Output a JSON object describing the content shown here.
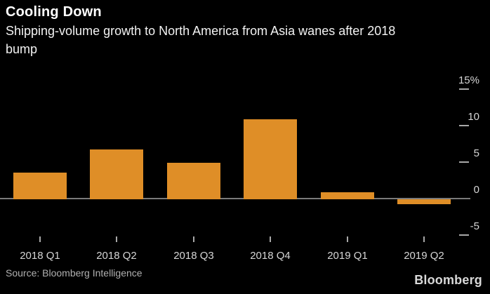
{
  "header": {
    "title": "Cooling Down",
    "subtitle": "Shipping-volume growth to North America from Asia wanes after 2018\nbump"
  },
  "chart_data": {
    "type": "bar",
    "title": "Cooling Down",
    "subtitle": "Shipping-volume growth to North America from Asia wanes after 2018 bump",
    "categories": [
      "2018 Q1",
      "2018 Q2",
      "2018 Q3",
      "2018 Q4",
      "2019 Q1",
      "2019 Q2"
    ],
    "values": [
      3.7,
      6.8,
      5.0,
      11.0,
      1.0,
      -0.7
    ],
    "unit": "%",
    "xlabel": "",
    "ylabel": "",
    "ylim": [
      -5,
      15
    ],
    "yticks": [
      15,
      10,
      5,
      0,
      -5
    ],
    "ytick_labels": [
      "15%",
      "10",
      "5",
      "0",
      "-5"
    ],
    "grid": false,
    "legend": false,
    "yaxis_position": "right",
    "colors": {
      "background": "#000000",
      "bar": "#df8e27",
      "axis_line": "#7a7a7a",
      "tick": "#a8a8a8",
      "tick_label": "#d6d6d6"
    }
  },
  "footer": {
    "source": "Source: Bloomberg Intelligence",
    "brand": "Bloomberg"
  }
}
